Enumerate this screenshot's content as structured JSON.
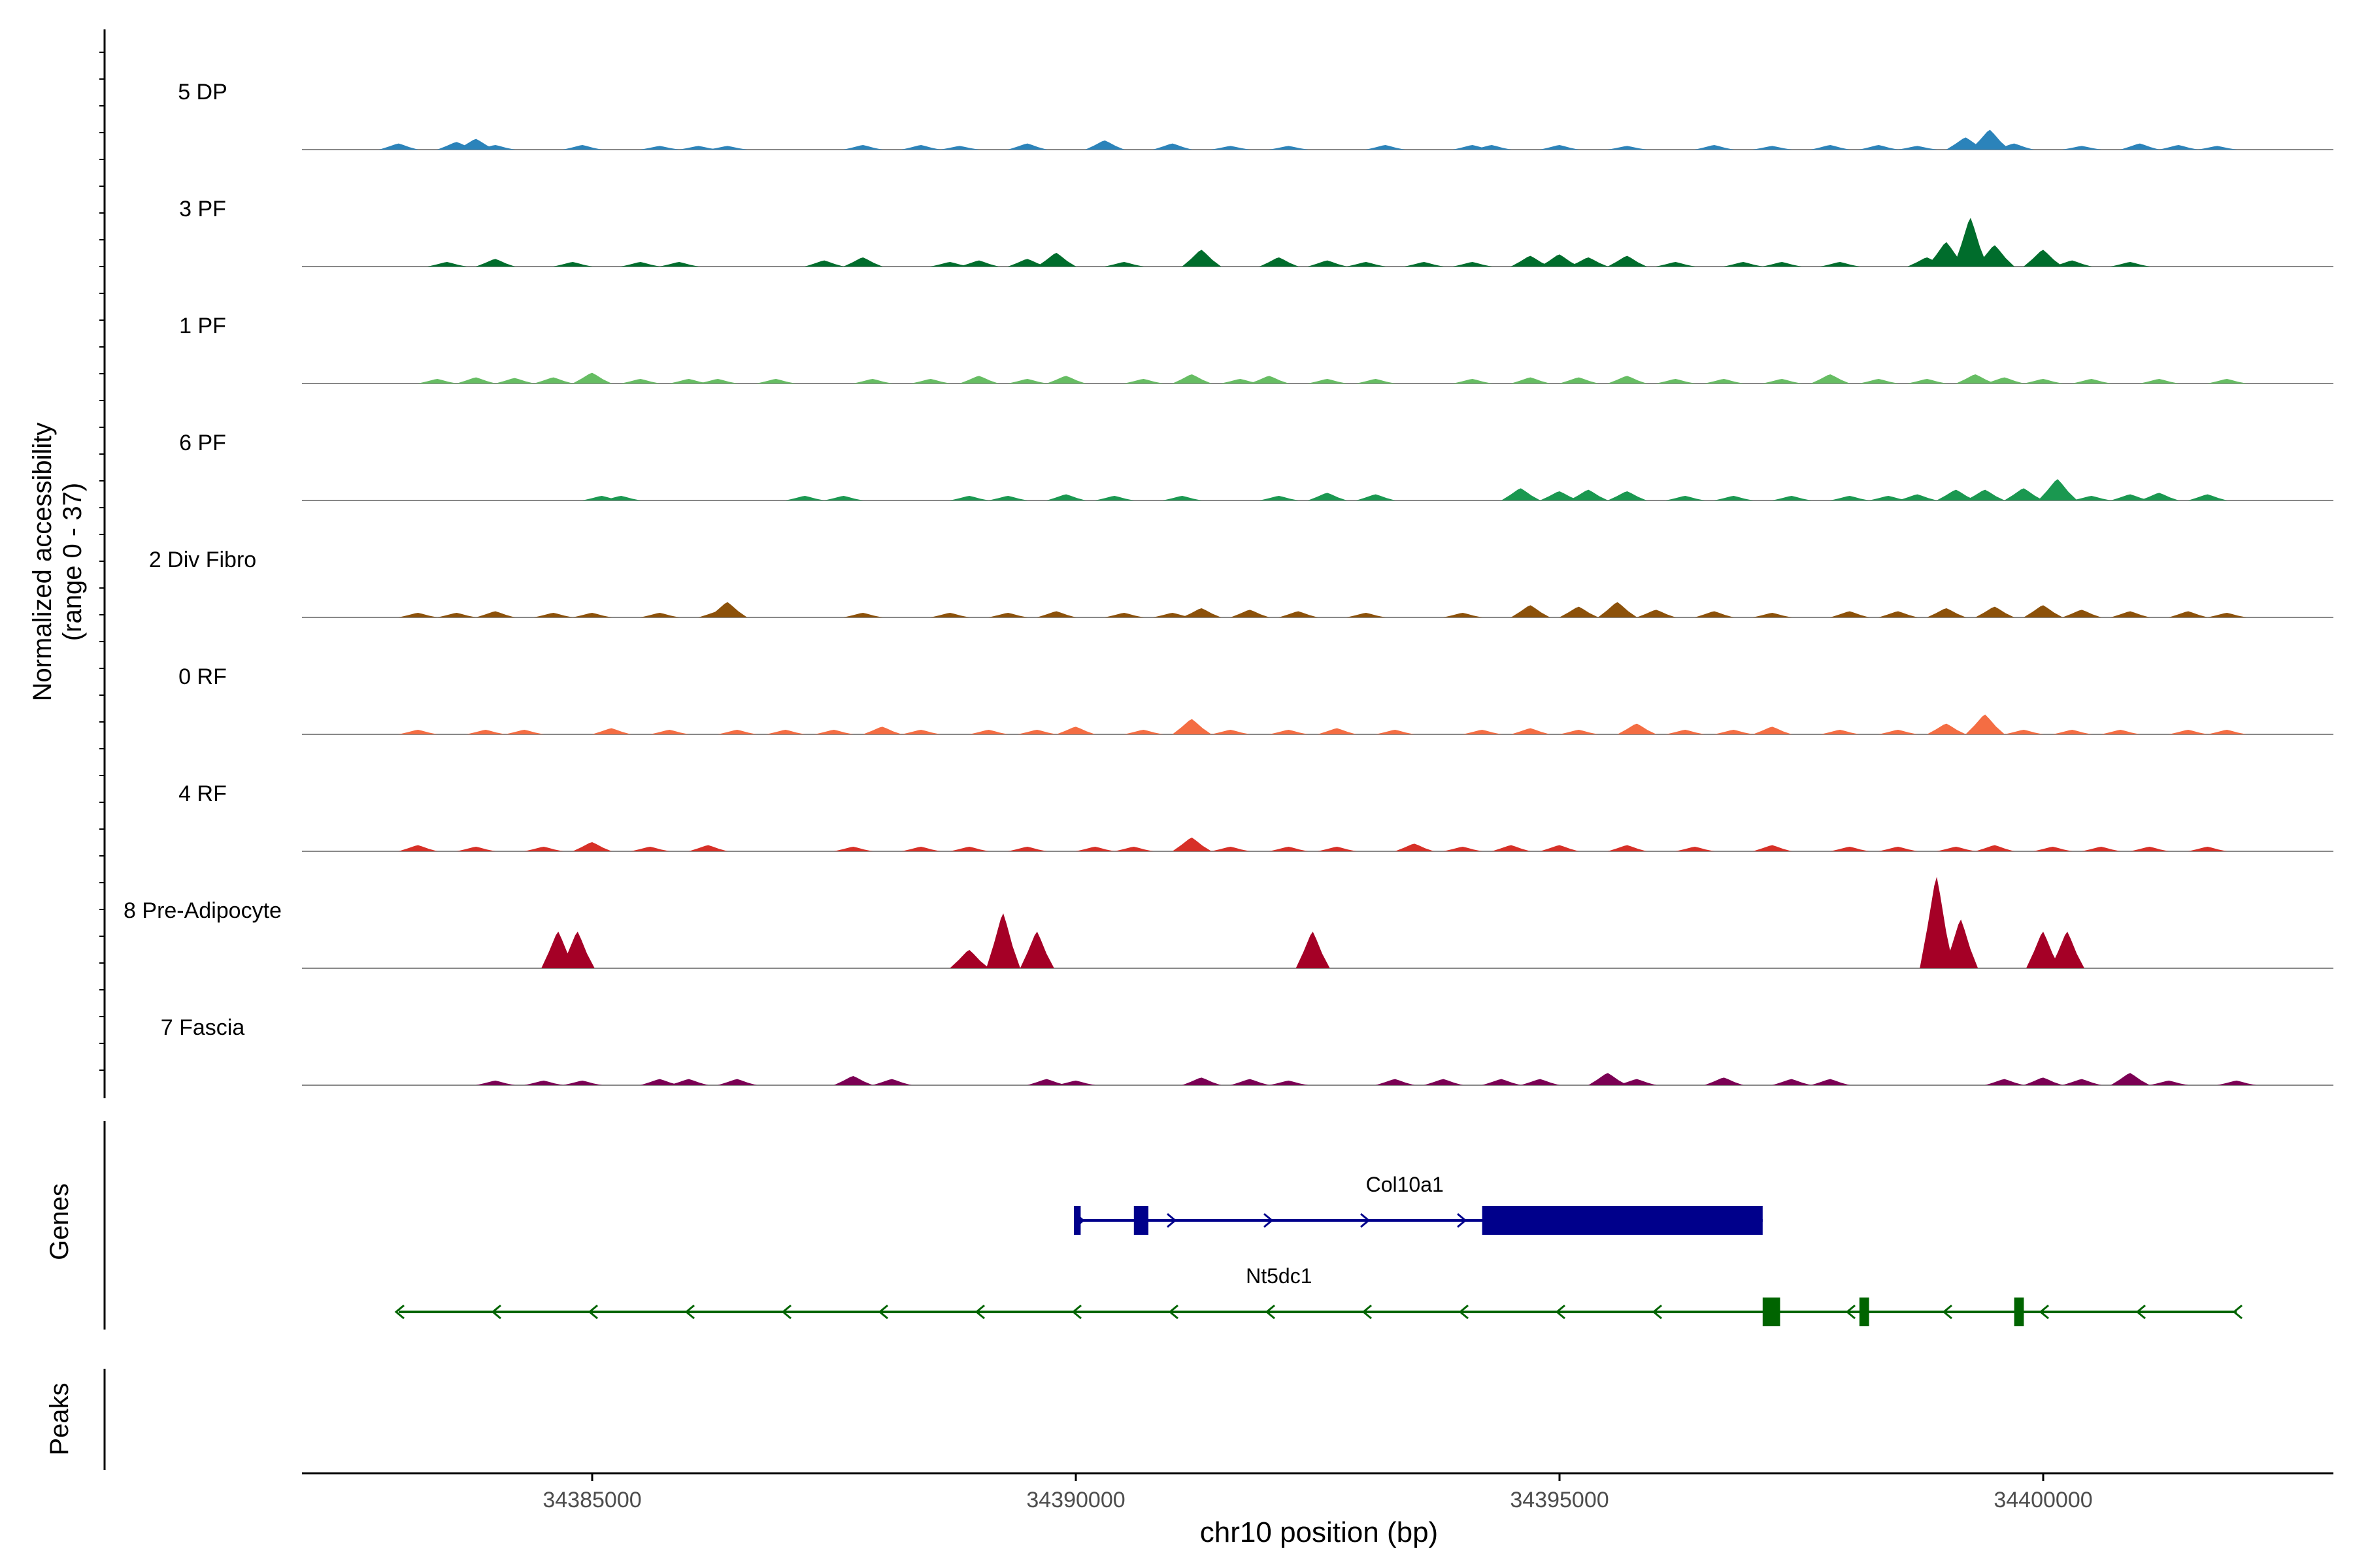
{
  "chart_data": {
    "type": "area",
    "title": "",
    "xlabel": "chr10 position (bp)",
    "ylabel": "Normalized accessibility",
    "ylabel_range": "(range 0 - 37)",
    "chromosome": "chr10",
    "xlim": [
      34382000,
      34403000
    ],
    "ylim": [
      0,
      37
    ],
    "x_ticks": [
      34385000,
      34390000,
      34395000,
      34400000
    ],
    "x_tick_labels": [
      "34385000",
      "34390000",
      "34395000",
      "34400000"
    ],
    "panel_labels": {
      "genes": "Genes",
      "peaks": "Peaks"
    },
    "series": [
      {
        "name": "5 DP",
        "color": "#2b83ba",
        "peaks": [
          [
            34383000,
            2
          ],
          [
            34383600,
            2.5
          ],
          [
            34383800,
            3.5
          ],
          [
            34384000,
            1.5
          ],
          [
            34384900,
            1.5
          ],
          [
            34385700,
            1.2
          ],
          [
            34386100,
            1.2
          ],
          [
            34386400,
            1.2
          ],
          [
            34387800,
            1.5
          ],
          [
            34388400,
            1.5
          ],
          [
            34388800,
            1.2
          ],
          [
            34389500,
            2
          ],
          [
            34390300,
            3
          ],
          [
            34391000,
            2
          ],
          [
            34391600,
            1.2
          ],
          [
            34392200,
            1.2
          ],
          [
            34393200,
            1.5
          ],
          [
            34394100,
            1.5
          ],
          [
            34394300,
            1.5
          ],
          [
            34395000,
            1.5
          ],
          [
            34395700,
            1.2
          ],
          [
            34396600,
            1.5
          ],
          [
            34397200,
            1.2
          ],
          [
            34397800,
            1.5
          ],
          [
            34398300,
            1.5
          ],
          [
            34398700,
            1.2
          ],
          [
            34399200,
            4
          ],
          [
            34399450,
            6.5
          ],
          [
            34399700,
            2
          ],
          [
            34400400,
            1.2
          ],
          [
            34401000,
            2
          ],
          [
            34401400,
            1.5
          ],
          [
            34401800,
            1.2
          ]
        ]
      },
      {
        "name": "3 PF",
        "color": "#006d2c",
        "peaks": [
          [
            34383500,
            1.5
          ],
          [
            34384000,
            2.5
          ],
          [
            34384800,
            1.5
          ],
          [
            34385500,
            1.5
          ],
          [
            34385900,
            1.5
          ],
          [
            34387400,
            2
          ],
          [
            34387800,
            3
          ],
          [
            34388700,
            1.5
          ],
          [
            34389000,
            2
          ],
          [
            34389500,
            2.5
          ],
          [
            34389800,
            4.5
          ],
          [
            34390500,
            1.5
          ],
          [
            34391300,
            5.5
          ],
          [
            34392100,
            3
          ],
          [
            34392600,
            2
          ],
          [
            34393000,
            1.5
          ],
          [
            34393600,
            1.5
          ],
          [
            34394100,
            1.5
          ],
          [
            34394700,
            3.5
          ],
          [
            34395000,
            4
          ],
          [
            34395300,
            3
          ],
          [
            34395700,
            3.5
          ],
          [
            34396200,
            1.5
          ],
          [
            34396900,
            1.5
          ],
          [
            34397300,
            1.5
          ],
          [
            34397900,
            1.5
          ],
          [
            34398800,
            3
          ],
          [
            34399000,
            8
          ],
          [
            34399250,
            16
          ],
          [
            34399500,
            7
          ],
          [
            34400000,
            5.5
          ],
          [
            34400300,
            2
          ],
          [
            34400900,
            1.5
          ]
        ]
      },
      {
        "name": "1 PF",
        "color": "#66bd63",
        "peaks": [
          [
            34383400,
            1.5
          ],
          [
            34383800,
            2
          ],
          [
            34384200,
            1.8
          ],
          [
            34384600,
            2
          ],
          [
            34385000,
            3.5
          ],
          [
            34385500,
            1.5
          ],
          [
            34386000,
            1.5
          ],
          [
            34386300,
            1.5
          ],
          [
            34386900,
            1.5
          ],
          [
            34387900,
            1.5
          ],
          [
            34388500,
            1.5
          ],
          [
            34389000,
            2.5
          ],
          [
            34389500,
            1.5
          ],
          [
            34389900,
            2.5
          ],
          [
            34390700,
            1.5
          ],
          [
            34391200,
            3
          ],
          [
            34391700,
            1.5
          ],
          [
            34392000,
            2.5
          ],
          [
            34392600,
            1.5
          ],
          [
            34393100,
            1.5
          ],
          [
            34394100,
            1.5
          ],
          [
            34394700,
            2
          ],
          [
            34395200,
            2
          ],
          [
            34395700,
            2.5
          ],
          [
            34396200,
            1.5
          ],
          [
            34396700,
            1.5
          ],
          [
            34397300,
            1.5
          ],
          [
            34397800,
            3
          ],
          [
            34398300,
            1.5
          ],
          [
            34398800,
            1.5
          ],
          [
            34399300,
            3
          ],
          [
            34399600,
            2
          ],
          [
            34400000,
            1.5
          ],
          [
            34400500,
            1.5
          ],
          [
            34401200,
            1.5
          ],
          [
            34401900,
            1.5
          ]
        ]
      },
      {
        "name": "6 PF",
        "color": "#1a9850",
        "peaks": [
          [
            34385100,
            1.5
          ],
          [
            34385300,
            1.5
          ],
          [
            34387200,
            1.5
          ],
          [
            34387600,
            1.5
          ],
          [
            34388900,
            1.5
          ],
          [
            34389300,
            1.5
          ],
          [
            34389900,
            2
          ],
          [
            34390400,
            1.5
          ],
          [
            34391100,
            1.5
          ],
          [
            34392100,
            1.5
          ],
          [
            34392600,
            2.5
          ],
          [
            34393100,
            2
          ],
          [
            34394600,
            4
          ],
          [
            34395000,
            3
          ],
          [
            34395300,
            3.5
          ],
          [
            34395700,
            3
          ],
          [
            34396300,
            1.5
          ],
          [
            34396800,
            1.5
          ],
          [
            34397400,
            1.5
          ],
          [
            34398000,
            1.5
          ],
          [
            34398400,
            1.5
          ],
          [
            34398700,
            2
          ],
          [
            34399100,
            3.5
          ],
          [
            34399400,
            3.5
          ],
          [
            34399800,
            4
          ],
          [
            34400150,
            7
          ],
          [
            34400500,
            1.5
          ],
          [
            34400900,
            2
          ],
          [
            34401200,
            2.5
          ],
          [
            34401700,
            2
          ]
        ]
      },
      {
        "name": "2 Div Fibro",
        "color": "#8c510a",
        "peaks": [
          [
            34383200,
            1.5
          ],
          [
            34383600,
            1.5
          ],
          [
            34384000,
            2
          ],
          [
            34384600,
            1.5
          ],
          [
            34385000,
            1.5
          ],
          [
            34385700,
            1.5
          ],
          [
            34386300,
            2
          ],
          [
            34386400,
            5
          ],
          [
            34387800,
            1.5
          ],
          [
            34388700,
            1.5
          ],
          [
            34389300,
            1.5
          ],
          [
            34389800,
            2
          ],
          [
            34390500,
            1.5
          ],
          [
            34391000,
            1.5
          ],
          [
            34391300,
            3
          ],
          [
            34391800,
            2.5
          ],
          [
            34392300,
            2
          ],
          [
            34393000,
            1.5
          ],
          [
            34394000,
            1.5
          ],
          [
            34394700,
            4
          ],
          [
            34395200,
            3.5
          ],
          [
            34395600,
            5
          ],
          [
            34396000,
            2.5
          ],
          [
            34396600,
            2
          ],
          [
            34397200,
            1.5
          ],
          [
            34398000,
            2
          ],
          [
            34398500,
            2
          ],
          [
            34399000,
            3
          ],
          [
            34399500,
            3.5
          ],
          [
            34400000,
            4
          ],
          [
            34400400,
            2.5
          ],
          [
            34400900,
            2
          ],
          [
            34401500,
            2
          ],
          [
            34401900,
            1.5
          ]
        ]
      },
      {
        "name": "0 RF",
        "color": "#f46d43",
        "peaks": [
          [
            34383200,
            1.5
          ],
          [
            34383900,
            1.5
          ],
          [
            34384300,
            1.5
          ],
          [
            34385200,
            2
          ],
          [
            34385800,
            1.5
          ],
          [
            34386500,
            1.5
          ],
          [
            34387000,
            1.5
          ],
          [
            34387500,
            1.5
          ],
          [
            34388000,
            2.5
          ],
          [
            34388400,
            1.5
          ],
          [
            34389100,
            1.5
          ],
          [
            34389600,
            1.5
          ],
          [
            34390000,
            2.5
          ],
          [
            34390700,
            1.5
          ],
          [
            34391200,
            5
          ],
          [
            34391600,
            1.5
          ],
          [
            34392200,
            1.5
          ],
          [
            34392700,
            2
          ],
          [
            34393300,
            1.5
          ],
          [
            34394200,
            1.5
          ],
          [
            34394700,
            2
          ],
          [
            34395200,
            1.5
          ],
          [
            34395800,
            3.5
          ],
          [
            34396300,
            1.5
          ],
          [
            34396800,
            1.5
          ],
          [
            34397200,
            2.5
          ],
          [
            34397900,
            1.5
          ],
          [
            34398500,
            1.5
          ],
          [
            34399000,
            3.5
          ],
          [
            34399400,
            6.5
          ],
          [
            34399800,
            1.5
          ],
          [
            34400300,
            1.5
          ],
          [
            34400800,
            1.5
          ],
          [
            34401500,
            1.5
          ],
          [
            34401900,
            1.5
          ]
        ]
      },
      {
        "name": "4 RF",
        "color": "#d73027",
        "peaks": [
          [
            34383200,
            2
          ],
          [
            34383800,
            1.5
          ],
          [
            34384500,
            1.5
          ],
          [
            34385000,
            3
          ],
          [
            34385600,
            1.5
          ],
          [
            34386200,
            2
          ],
          [
            34387700,
            1.5
          ],
          [
            34388400,
            1.5
          ],
          [
            34388900,
            1.5
          ],
          [
            34389500,
            1.5
          ],
          [
            34390200,
            1.5
          ],
          [
            34390600,
            1.5
          ],
          [
            34391200,
            4.5
          ],
          [
            34391600,
            1.5
          ],
          [
            34392200,
            1.5
          ],
          [
            34392700,
            1.5
          ],
          [
            34393500,
            2.5
          ],
          [
            34394000,
            1.5
          ],
          [
            34394500,
            2
          ],
          [
            34395000,
            2
          ],
          [
            34395700,
            2
          ],
          [
            34396400,
            1.5
          ],
          [
            34397200,
            2
          ],
          [
            34398000,
            1.5
          ],
          [
            34398500,
            1.5
          ],
          [
            34399100,
            1.5
          ],
          [
            34399500,
            2
          ],
          [
            34400100,
            1.5
          ],
          [
            34400600,
            1.5
          ],
          [
            34401100,
            1.5
          ],
          [
            34401700,
            1.5
          ]
        ]
      },
      {
        "name": "8 Pre-Adipocyte",
        "color": "#a50026",
        "peaks": [
          [
            34384650,
            12
          ],
          [
            34384850,
            12
          ],
          [
            34388900,
            6
          ],
          [
            34389250,
            18
          ],
          [
            34389600,
            12
          ],
          [
            34392450,
            12
          ],
          [
            34398900,
            30
          ],
          [
            34399150,
            16
          ],
          [
            34400000,
            12
          ],
          [
            34400250,
            12
          ]
        ]
      },
      {
        "name": "7 Fascia",
        "color": "#7b0054",
        "peaks": [
          [
            34384000,
            1.5
          ],
          [
            34384500,
            1.5
          ],
          [
            34384900,
            1.5
          ],
          [
            34385700,
            2
          ],
          [
            34386000,
            2
          ],
          [
            34386500,
            2
          ],
          [
            34387700,
            3
          ],
          [
            34388100,
            2
          ],
          [
            34389700,
            2
          ],
          [
            34390000,
            1.5
          ],
          [
            34391300,
            2.5
          ],
          [
            34391800,
            2
          ],
          [
            34392200,
            1.5
          ],
          [
            34393300,
            2
          ],
          [
            34393800,
            2
          ],
          [
            34394400,
            2
          ],
          [
            34394800,
            2
          ],
          [
            34395500,
            4
          ],
          [
            34395800,
            2
          ],
          [
            34396700,
            2.5
          ],
          [
            34397400,
            2
          ],
          [
            34397800,
            2
          ],
          [
            34399600,
            2
          ],
          [
            34400000,
            2.5
          ],
          [
            34400400,
            2
          ],
          [
            34400900,
            4
          ],
          [
            34401300,
            1.5
          ],
          [
            34402000,
            1.5
          ]
        ]
      }
    ],
    "genes": [
      {
        "name": "Col10a1",
        "strand": "+",
        "color": "#00008b",
        "start": 34390000,
        "end": 34397100,
        "exons": [
          [
            34389980,
            34390050
          ],
          [
            34390600,
            34390750
          ],
          [
            34394200,
            34397100
          ]
        ],
        "arrows": [
          34390050,
          34391000,
          34392000,
          34393000,
          34394000
        ]
      },
      {
        "name": "Nt5dc1",
        "strand": "-",
        "color": "#006400",
        "start": 34383000,
        "end": 34402000,
        "exons": [
          [
            34397100,
            34397280
          ],
          [
            34398100,
            34398200
          ],
          [
            34399700,
            34399800
          ]
        ],
        "arrows": [
          34383000,
          34384000,
          34385000,
          34386000,
          34387000,
          34388000,
          34389000,
          34390000,
          34391000,
          34392000,
          34393000,
          34394000,
          34395000,
          34396000,
          34398000,
          34399000,
          34400000,
          34401000,
          34402000
        ]
      }
    ],
    "peaks_track": []
  }
}
